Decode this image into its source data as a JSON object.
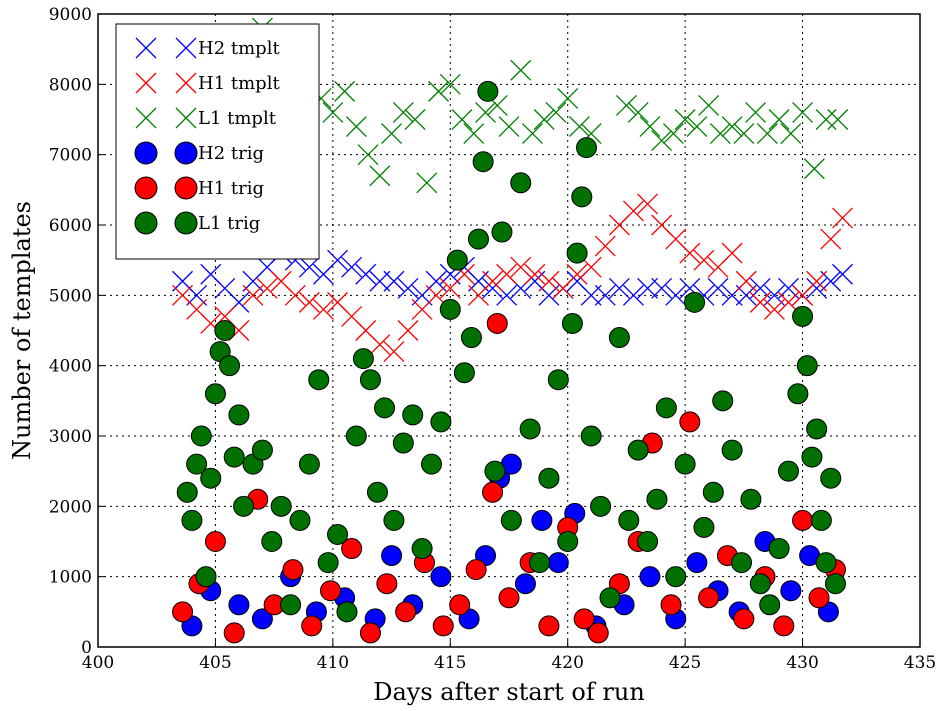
{
  "chart_data": {
    "type": "scatter",
    "xlabel": "Days after start of run",
    "ylabel": "Number of templates",
    "xlim": [
      400,
      435
    ],
    "ylim": [
      0,
      9000
    ],
    "xticks": [
      400,
      405,
      410,
      415,
      420,
      425,
      430,
      435
    ],
    "yticks": [
      0,
      1000,
      2000,
      3000,
      4000,
      5000,
      6000,
      7000,
      8000,
      9000
    ],
    "grid": true,
    "legend_position": "top-left",
    "series": [
      {
        "name": "H2 tmplt",
        "marker": "x",
        "color": "#0000ff",
        "x": [
          403.6,
          404.2,
          404.8,
          405.4,
          406.0,
          406.6,
          407.2,
          407.8,
          408.4,
          409.0,
          409.6,
          410.2,
          410.8,
          411.4,
          412.0,
          412.6,
          413.2,
          413.8,
          414.4,
          415.0,
          415.6,
          416.2,
          416.8,
          417.4,
          418.0,
          418.6,
          419.2,
          419.8,
          420.4,
          421.0,
          421.6,
          422.2,
          422.8,
          423.4,
          424.0,
          424.6,
          425.2,
          425.8,
          426.4,
          427.0,
          427.6,
          428.2,
          428.8,
          429.4,
          430.0,
          430.6,
          431.2,
          431.7
        ],
        "y": [
          5200,
          5000,
          5300,
          5100,
          4900,
          5200,
          5400,
          5600,
          5500,
          5400,
          5300,
          5500,
          5400,
          5300,
          5200,
          5200,
          5100,
          5000,
          5200,
          5300,
          5400,
          5200,
          5100,
          5000,
          5100,
          5200,
          5000,
          5100,
          5200,
          5000,
          5000,
          5100,
          5000,
          5100,
          5100,
          5000,
          5100,
          5000,
          5100,
          5000,
          5000,
          5100,
          5000,
          5100,
          5000,
          5100,
          5200,
          5300
        ]
      },
      {
        "name": "H1 tmplt",
        "marker": "x",
        "color": "#ff0000",
        "x": [
          403.6,
          404.2,
          404.8,
          405.4,
          406.0,
          406.6,
          407.2,
          407.8,
          408.4,
          409.0,
          409.6,
          410.2,
          410.8,
          411.4,
          412.0,
          412.6,
          413.2,
          413.8,
          414.4,
          415.0,
          415.6,
          416.2,
          416.8,
          417.4,
          418.0,
          418.6,
          419.2,
          419.8,
          420.4,
          421.0,
          421.6,
          422.2,
          422.8,
          423.4,
          424.0,
          424.6,
          425.2,
          425.8,
          426.4,
          427.0,
          427.6,
          428.2,
          428.8,
          429.4,
          430.0,
          430.6,
          431.2,
          431.7
        ],
        "y": [
          5000,
          4800,
          4600,
          4700,
          4500,
          5000,
          5100,
          5200,
          5000,
          4900,
          4800,
          4900,
          4700,
          4500,
          4300,
          4200,
          4500,
          4800,
          5000,
          5100,
          5300,
          5000,
          5200,
          5300,
          5400,
          5300,
          5200,
          5100,
          5300,
          5400,
          5700,
          6000,
          6200,
          6300,
          6000,
          5800,
          5600,
          5500,
          5400,
          5600,
          5200,
          4900,
          4800,
          4900,
          5000,
          5200,
          5800,
          6100
        ]
      },
      {
        "name": "L1 tmplt",
        "marker": "x",
        "color": "#008000",
        "x": [
          405.5,
          406.0,
          406.5,
          407.0,
          407.5,
          408.0,
          408.5,
          409.0,
          409.5,
          410.0,
          410.5,
          411.0,
          411.5,
          412.0,
          412.5,
          413.0,
          413.5,
          414.0,
          414.5,
          415.0,
          415.5,
          416.0,
          416.5,
          417.0,
          417.5,
          418.0,
          418.5,
          419.0,
          419.5,
          420.0,
          420.5,
          421.0,
          422.5,
          423.0,
          423.5,
          424.0,
          424.5,
          425.0,
          425.5,
          426.0,
          426.5,
          427.0,
          427.5,
          428.0,
          428.5,
          429.0,
          429.5,
          430.0,
          430.5,
          431.0,
          431.5
        ],
        "y": [
          7600,
          7400,
          7700,
          8800,
          7500,
          7300,
          7600,
          7700,
          7800,
          7600,
          7900,
          7400,
          7000,
          6700,
          7300,
          7600,
          7500,
          6600,
          7900,
          8000,
          7500,
          7300,
          7600,
          7700,
          7400,
          8200,
          7300,
          7500,
          7600,
          7800,
          7400,
          7300,
          7700,
          7600,
          7400,
          7200,
          7300,
          7500,
          7400,
          7700,
          7300,
          7400,
          7300,
          7600,
          7300,
          7500,
          7300,
          7600,
          6800,
          7500,
          7500
        ]
      },
      {
        "name": "H2 trig",
        "marker": "o",
        "color": "#0000ff",
        "x": [
          404.0,
          404.8,
          406.0,
          407.0,
          408.2,
          409.3,
          410.5,
          411.8,
          412.5,
          413.4,
          414.6,
          415.8,
          416.5,
          417.1,
          417.6,
          418.2,
          418.9,
          419.6,
          420.3,
          421.2,
          422.4,
          423.5,
          424.6,
          425.5,
          426.4,
          427.3,
          428.4,
          429.5,
          430.3,
          431.1
        ],
        "y": [
          300,
          800,
          600,
          400,
          1000,
          500,
          700,
          400,
          1300,
          600,
          1000,
          400,
          1300,
          2400,
          2600,
          900,
          1800,
          1200,
          1900,
          300,
          600,
          1000,
          400,
          1200,
          800,
          500,
          1500,
          800,
          1300,
          500
        ]
      },
      {
        "name": "H1 trig",
        "marker": "o",
        "color": "#ff0000",
        "x": [
          403.6,
          404.3,
          405.0,
          405.8,
          406.8,
          407.5,
          408.3,
          409.1,
          409.9,
          410.8,
          411.6,
          412.3,
          413.1,
          413.9,
          414.7,
          415.4,
          416.1,
          416.8,
          417.0,
          417.5,
          418.4,
          419.2,
          420.0,
          420.7,
          421.3,
          422.2,
          423.0,
          423.6,
          424.4,
          425.2,
          426.0,
          426.8,
          427.5,
          428.4,
          429.2,
          430.0,
          430.7,
          431.4
        ],
        "y": [
          500,
          900,
          1500,
          200,
          2100,
          600,
          1100,
          300,
          800,
          1400,
          200,
          900,
          500,
          1200,
          300,
          600,
          1100,
          2200,
          4600,
          700,
          1200,
          300,
          1700,
          400,
          200,
          900,
          1500,
          2900,
          600,
          3200,
          700,
          1300,
          400,
          1000,
          300,
          1800,
          700,
          1100
        ]
      },
      {
        "name": "L1 trig",
        "marker": "o",
        "color": "#007000",
        "x": [
          403.8,
          404.0,
          404.2,
          404.4,
          404.6,
          404.8,
          405.0,
          405.2,
          405.4,
          405.6,
          405.8,
          406.0,
          406.2,
          406.6,
          407.0,
          407.4,
          407.8,
          408.2,
          408.6,
          409.0,
          409.4,
          409.8,
          410.2,
          410.6,
          411.0,
          411.3,
          411.6,
          411.9,
          412.2,
          412.6,
          413.0,
          413.4,
          413.8,
          414.2,
          414.6,
          415.0,
          415.3,
          415.6,
          415.9,
          416.2,
          416.4,
          416.6,
          416.9,
          417.2,
          417.6,
          418.0,
          418.4,
          418.8,
          419.2,
          419.6,
          420.0,
          420.2,
          420.4,
          420.6,
          420.8,
          421.0,
          421.4,
          421.8,
          422.2,
          422.6,
          423.0,
          423.4,
          423.8,
          424.2,
          424.6,
          425.0,
          425.4,
          425.8,
          426.2,
          426.6,
          427.0,
          427.4,
          427.8,
          428.2,
          428.6,
          429.0,
          429.4,
          429.8,
          430.0,
          430.2,
          430.4,
          430.6,
          430.8,
          431.0,
          431.2,
          431.4
        ],
        "y": [
          2200,
          1800,
          2600,
          3000,
          1000,
          2400,
          3600,
          4200,
          4500,
          4000,
          2700,
          3300,
          2000,
          2600,
          2800,
          1500,
          2000,
          600,
          1800,
          2600,
          3800,
          1200,
          1600,
          500,
          3000,
          4100,
          3800,
          2200,
          3400,
          1800,
          2900,
          3300,
          1400,
          2600,
          3200,
          4800,
          5500,
          3900,
          4400,
          5800,
          6900,
          7900,
          2500,
          5900,
          1800,
          6600,
          3100,
          1200,
          2400,
          3800,
          1500,
          4600,
          5600,
          6400,
          7100,
          3000,
          2000,
          700,
          4400,
          1800,
          2800,
          1500,
          2100,
          3400,
          1000,
          2600,
          4900,
          1700,
          2200,
          3500,
          2800,
          1200,
          2100,
          900,
          600,
          1400,
          2500,
          3600,
          4700,
          4000,
          2700,
          3100,
          1800,
          1200,
          2400,
          900
        ]
      }
    ]
  }
}
